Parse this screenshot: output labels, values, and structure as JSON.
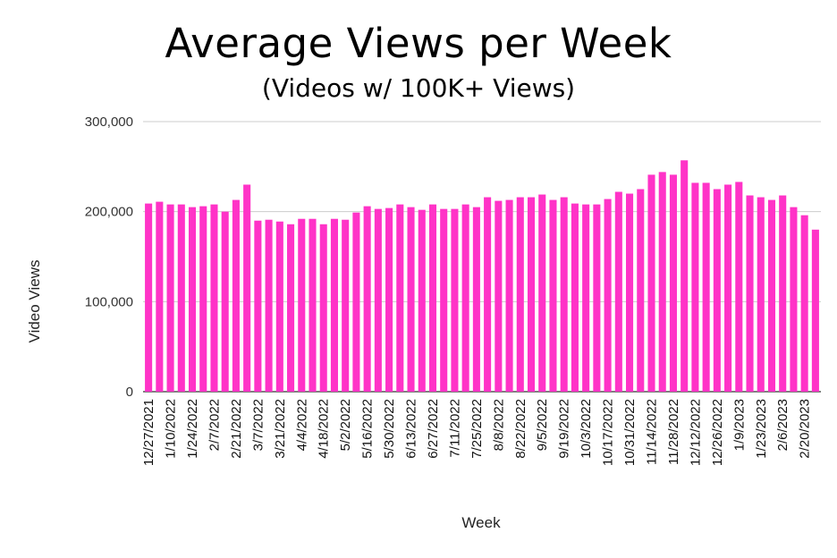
{
  "chart_data": {
    "type": "bar",
    "title": "Average Views per Week",
    "subtitle": "(Videos w/ 100K+ Views)",
    "xlabel": "Week",
    "ylabel": "Video Views",
    "ylim": [
      0,
      300000
    ],
    "y_ticks": [
      0,
      100000,
      200000,
      300000
    ],
    "y_tick_labels": [
      "0",
      "100,000",
      "200,000",
      "300,000"
    ],
    "grid": true,
    "legend": "none",
    "bar_color": "#ff33c7",
    "categories": [
      "12/27/2021",
      "1/3/2022",
      "1/10/2022",
      "1/17/2022",
      "1/24/2022",
      "1/31/2022",
      "2/7/2022",
      "2/14/2022",
      "2/21/2022",
      "2/28/2022",
      "3/7/2022",
      "3/14/2022",
      "3/21/2022",
      "3/28/2022",
      "4/4/2022",
      "4/11/2022",
      "4/18/2022",
      "4/25/2022",
      "5/2/2022",
      "5/9/2022",
      "5/16/2022",
      "5/23/2022",
      "5/30/2022",
      "6/6/2022",
      "6/13/2022",
      "6/20/2022",
      "6/27/2022",
      "7/4/2022",
      "7/11/2022",
      "7/18/2022",
      "7/25/2022",
      "8/1/2022",
      "8/8/2022",
      "8/15/2022",
      "8/22/2022",
      "8/29/2022",
      "9/5/2022",
      "9/12/2022",
      "9/19/2022",
      "9/26/2022",
      "10/3/2022",
      "10/10/2022",
      "10/17/2022",
      "10/24/2022",
      "10/31/2022",
      "11/7/2022",
      "11/14/2022",
      "11/21/2022",
      "11/28/2022",
      "12/5/2022",
      "12/12/2022",
      "12/19/2022",
      "12/26/2022",
      "1/2/2023",
      "1/9/2023",
      "1/16/2023",
      "1/23/2023",
      "1/30/2023",
      "2/6/2023",
      "2/13/2023",
      "2/20/2023",
      "2/27/2023"
    ],
    "shown_x_labels": [
      "12/27/2021",
      "1/10/2022",
      "1/24/2022",
      "2/7/2022",
      "2/21/2022",
      "3/7/2022",
      "3/21/2022",
      "4/4/2022",
      "4/18/2022",
      "5/2/2022",
      "5/16/2022",
      "5/30/2022",
      "6/13/2022",
      "6/27/2022",
      "7/11/2022",
      "7/25/2022",
      "8/8/2022",
      "8/22/2022",
      "9/5/2022",
      "9/19/2022",
      "10/3/2022",
      "10/17/2022",
      "10/31/2022",
      "11/14/2022",
      "11/28/2022",
      "12/12/2022",
      "12/26/2022",
      "1/9/2023",
      "1/23/2023",
      "2/6/2023",
      "2/20/2023"
    ],
    "values": [
      209000,
      211000,
      208000,
      208000,
      205000,
      206000,
      208000,
      200000,
      213000,
      230000,
      190000,
      191000,
      189000,
      186000,
      192000,
      192000,
      186000,
      192000,
      191000,
      199000,
      206000,
      203000,
      204000,
      208000,
      205000,
      202000,
      208000,
      203000,
      203000,
      208000,
      205000,
      216000,
      212000,
      213000,
      216000,
      216000,
      219000,
      213000,
      216000,
      209000,
      208000,
      208000,
      214000,
      222000,
      220000,
      225000,
      241000,
      244000,
      241000,
      257000,
      232000,
      232000,
      225000,
      230000,
      233000,
      218000,
      216000,
      213000,
      218000,
      205000,
      196000,
      180000
    ]
  }
}
